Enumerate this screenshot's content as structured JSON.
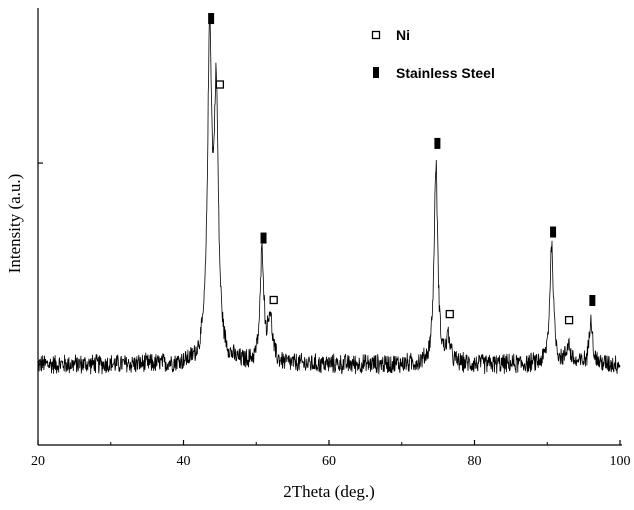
{
  "chart_data": {
    "type": "line",
    "title": "",
    "xlabel": "2Theta (deg.)",
    "ylabel": "Intensity (a.u.)",
    "xlim": [
      20,
      100
    ],
    "ylim": [
      -0.4,
      1.75
    ],
    "xticks": [
      20,
      40,
      60,
      80,
      100
    ],
    "xtick_labels": [
      "20",
      "40",
      "60",
      "80",
      "100"
    ],
    "yticks": [
      0,
      1
    ],
    "ytick_labels": [],
    "grid": false,
    "baseline": 0.0,
    "noise_amplitude": 0.035,
    "peaks": [
      {
        "x": 43.6,
        "height": 1.57,
        "width": 0.35,
        "phase": "Stainless Steel"
      },
      {
        "x": 44.5,
        "height": 1.25,
        "width": 0.35,
        "phase": "Ni"
      },
      {
        "x": 50.8,
        "height": 0.55,
        "width": 0.3,
        "phase": "Stainless Steel"
      },
      {
        "x": 51.9,
        "height": 0.23,
        "width": 0.35,
        "phase": "Ni"
      },
      {
        "x": 74.7,
        "height": 0.99,
        "width": 0.3,
        "phase": "Stainless Steel"
      },
      {
        "x": 76.4,
        "height": 0.12,
        "width": 0.3,
        "phase": "Ni"
      },
      {
        "x": 90.6,
        "height": 0.59,
        "width": 0.3,
        "phase": "Stainless Steel"
      },
      {
        "x": 92.9,
        "height": 0.1,
        "width": 0.3,
        "phase": "Ni"
      },
      {
        "x": 96.0,
        "height": 0.25,
        "width": 0.25,
        "phase": "Stainless Steel"
      }
    ],
    "markers": [
      {
        "x": 43.8,
        "y": 1.72,
        "symbol": "filled",
        "phase": "Stainless Steel"
      },
      {
        "x": 45.0,
        "y": 1.39,
        "symbol": "open",
        "phase": "Ni"
      },
      {
        "x": 51.0,
        "y": 0.63,
        "symbol": "filled",
        "phase": "Stainless Steel"
      },
      {
        "x": 52.4,
        "y": 0.32,
        "symbol": "open",
        "phase": "Ni"
      },
      {
        "x": 74.9,
        "y": 1.1,
        "symbol": "filled",
        "phase": "Stainless Steel"
      },
      {
        "x": 76.6,
        "y": 0.25,
        "symbol": "open",
        "phase": "Ni"
      },
      {
        "x": 90.8,
        "y": 0.66,
        "symbol": "filled",
        "phase": "Stainless Steel"
      },
      {
        "x": 93.0,
        "y": 0.22,
        "symbol": "open",
        "phase": "Ni"
      },
      {
        "x": 96.2,
        "y": 0.32,
        "symbol": "filled",
        "phase": "Stainless Steel"
      }
    ],
    "legend": {
      "placement": "top-right",
      "entries": [
        {
          "label": "Ni",
          "symbol": "open"
        },
        {
          "label": "Stainless Steel",
          "symbol": "filled"
        }
      ]
    },
    "color": "#000000"
  }
}
